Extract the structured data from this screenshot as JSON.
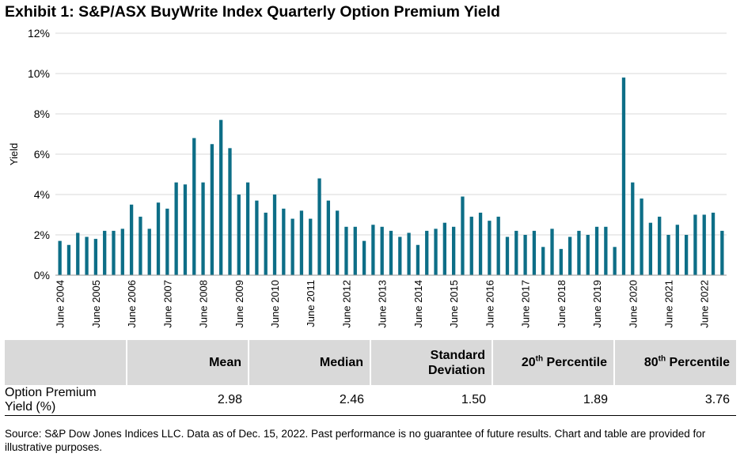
{
  "title": "Exhibit 1: S&P/ASX BuyWrite Index Quarterly Option Premium Yield",
  "chart_data": {
    "type": "bar",
    "ylabel": "Yield",
    "xlabel": "",
    "ylim": [
      0,
      12
    ],
    "yticks": [
      "0%",
      "2%",
      "4%",
      "6%",
      "8%",
      "10%",
      "12%"
    ],
    "grid": true,
    "legend": "none",
    "color": "#0d6e87",
    "xtick_labels": [
      "June 2004",
      "June 2005",
      "June 2006",
      "June 2007",
      "June 2008",
      "June 2009",
      "June 2010",
      "June 2011",
      "June 2012",
      "June 2013",
      "June 2014",
      "June 2015",
      "June 2016",
      "June 2017",
      "June 2018",
      "June 2019",
      "June 2020",
      "June 2021",
      "June 2022"
    ],
    "values": [
      1.7,
      1.5,
      2.1,
      1.9,
      1.8,
      2.2,
      2.2,
      2.3,
      3.5,
      2.9,
      2.3,
      3.6,
      3.3,
      4.6,
      4.5,
      6.8,
      4.6,
      6.5,
      7.7,
      6.3,
      4.0,
      4.6,
      3.7,
      3.1,
      4.0,
      3.3,
      2.8,
      3.2,
      2.8,
      4.8,
      3.7,
      3.2,
      2.4,
      2.4,
      1.7,
      2.5,
      2.4,
      2.2,
      1.9,
      2.1,
      1.5,
      2.2,
      2.3,
      2.6,
      2.4,
      3.9,
      2.9,
      3.1,
      2.7,
      2.9,
      1.9,
      2.2,
      2.0,
      2.2,
      1.4,
      2.3,
      1.3,
      1.9,
      2.2,
      2.0,
      2.4,
      2.4,
      1.4,
      9.8,
      4.6,
      3.8,
      2.6,
      2.9,
      2.0,
      2.5,
      2.0,
      3.0,
      3.0,
      3.1,
      2.2
    ]
  },
  "table": {
    "headers": {
      "mean": "Mean",
      "median": "Median",
      "std_line1": "Standard",
      "std_line2": "Deviation",
      "p20_num": "20",
      "p20_sup": "th",
      "p20_word": "Percentile",
      "p80_num": "80",
      "p80_sup": "th",
      "p80_word": "Percentile"
    },
    "row": {
      "label_line1": "Option Premium",
      "label_line2": "Yield (%)",
      "mean": "2.98",
      "median": "2.46",
      "std": "1.50",
      "p20": "1.89",
      "p80": "3.76"
    }
  },
  "source": "Source: S&P Dow Jones Indices LLC. Data as of Dec. 15, 2022. Past performance is no guarantee of future results. Chart and table are provided for illustrative purposes."
}
